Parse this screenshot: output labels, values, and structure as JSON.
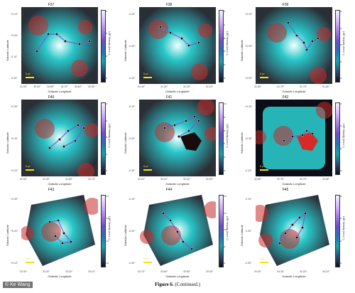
{
  "panels": [
    {
      "id": "F37",
      "scale": "5 pc",
      "xticks": [
        "31.00°",
        "30.90°",
        "30.80°",
        "30.70°",
        "30.60°",
        "30.50°"
      ],
      "yticks": [
        "+0.10°",
        "+0.00°",
        "-0.10°",
        "-0.20°"
      ],
      "cticks": [
        "35",
        "40",
        "45",
        "50"
      ]
    },
    {
      "id": "F38",
      "scale": "5 pc",
      "xticks": [
        "31.40°",
        "31.30°",
        "31.20°",
        "31.10°"
      ],
      "yticks": [
        "-0.20°",
        "-0.30°",
        "-0.40°"
      ],
      "cticks": [
        "39",
        "42",
        "45",
        "48",
        "51",
        "54"
      ]
    },
    {
      "id": "F39",
      "scale": "5 pc",
      "xticks": [
        "31.80°",
        "31.75°",
        "31.70°",
        "31.65°"
      ],
      "yticks": [
        "+0.10°",
        "+0.05°",
        "+0.00°"
      ],
      "cticks": [
        "78",
        "80",
        "82",
        "84",
        "86"
      ]
    },
    {
      "id": "F40",
      "scale": "5 pc",
      "xticks": [
        "32.00°",
        "31.90°",
        "31.80°",
        "31.70°"
      ],
      "yticks": [
        "+0.30°",
        "+0.20°",
        "+0.10°"
      ],
      "cticks": [
        "84",
        "86",
        "88",
        "90",
        "92"
      ]
    },
    {
      "id": "F41",
      "scale": "5 pc",
      "xticks": [
        "32.20°",
        "32.10°",
        "32.00°",
        "31.90°"
      ],
      "yticks": [
        "-0.10°",
        "-0.20°",
        "-0.30°"
      ],
      "cticks": [
        "95",
        "96",
        "97",
        "98",
        "99",
        "100"
      ]
    },
    {
      "id": "F42",
      "scale": "5 pc",
      "xticks": [
        "32.80°",
        "32.75°",
        "32.70°",
        "32.65°"
      ],
      "yticks": [
        "+0.10°",
        "+0.00°",
        "-0.10°"
      ],
      "cticks": [
        "88",
        "90",
        "92",
        "94"
      ]
    },
    {
      "id": "F43",
      "scale": "5 pc",
      "xticks": [
        "33.40°",
        "33.30°",
        "33.20°",
        "33.10°"
      ],
      "yticks": [
        "+0.30°",
        "+0.20°",
        "+0.10°"
      ],
      "cticks": [
        "100",
        "102",
        "104",
        "106"
      ]
    },
    {
      "id": "F44",
      "scale": "5 pc",
      "xticks": [
        "33.70°",
        "33.60°",
        "33.50°",
        "33.40°"
      ],
      "yticks": [
        "-0.10°",
        "-0.20°",
        "-0.30°"
      ],
      "cticks": [
        "96",
        "98",
        "100",
        "102",
        "104"
      ]
    },
    {
      "id": "F45",
      "scale": "5 pc",
      "xticks": [
        "34.40°",
        "34.30°",
        "34.20°",
        "34.10°"
      ],
      "yticks": [
        "-0.10°",
        "-0.20°",
        "-0.30°"
      ],
      "cticks": [
        "50",
        "52",
        "54",
        "56"
      ]
    }
  ],
  "labels": {
    "x_axis": "Galactic Longitude",
    "y_axis": "Galactic Latitude",
    "colorbar": "LSR Velocity (km s⁻¹)"
  },
  "caption": {
    "figure": "Figure 6.",
    "note": "(Continued.)"
  },
  "credit": "© Ke Wang",
  "colors": {
    "cyan": "#29c6c8",
    "red": "#c82a2a",
    "dark": "#0b0e16",
    "track": "#7a5cd6",
    "scalebar": "#f1e21c"
  }
}
